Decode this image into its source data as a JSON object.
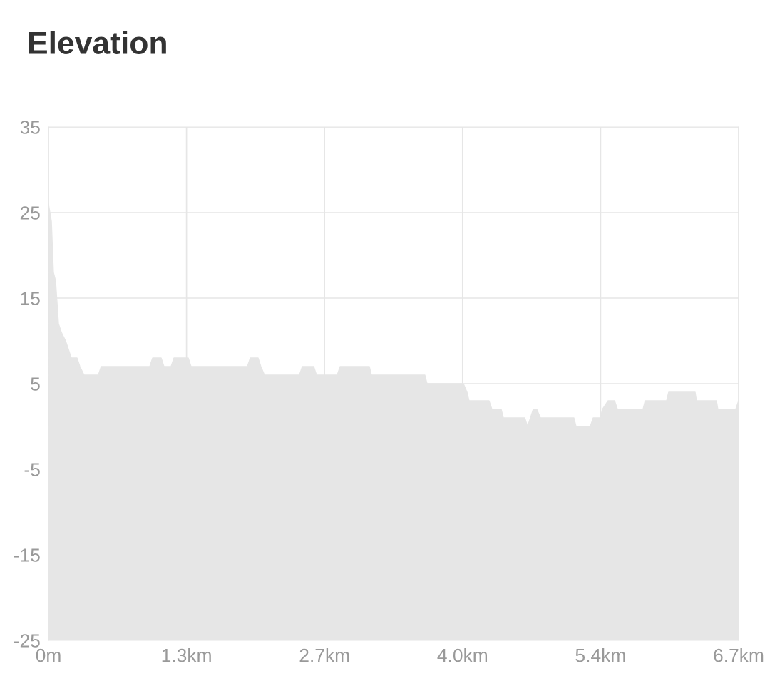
{
  "chart_data": {
    "type": "area",
    "title": "Elevation",
    "x": [
      0,
      0.028,
      0.048,
      0.069,
      0.097,
      0.125,
      0.166,
      0.194,
      0.221,
      0.277,
      0.305,
      0.346,
      0.484,
      0.512,
      0.983,
      1.011,
      1.094,
      1.121,
      1.19,
      1.218,
      1.357,
      1.384,
      1.931,
      1.959,
      2.035,
      2.062,
      2.097,
      2.436,
      2.464,
      2.575,
      2.602,
      2.803,
      2.831,
      3.115,
      3.135,
      3.654,
      3.675,
      4.028,
      4.063,
      4.083,
      4.277,
      4.305,
      4.395,
      4.416,
      4.624,
      4.651,
      4.679,
      4.706,
      4.741,
      4.776,
      5.101,
      5.122,
      5.26,
      5.288,
      5.357,
      5.378,
      5.433,
      5.496,
      5.524,
      5.772,
      5.793,
      6.001,
      6.021,
      6.278,
      6.291,
      6.485,
      6.499,
      6.672,
      6.7
    ],
    "series": [
      {
        "color": "#e6e6e6",
        "values": [
          26,
          24,
          18,
          17,
          12,
          11,
          10,
          9,
          8,
          8,
          7,
          6,
          6,
          7,
          7,
          8,
          8,
          7,
          7,
          8,
          8,
          7,
          7,
          8,
          8,
          7,
          6,
          6,
          7,
          7,
          6,
          6,
          7,
          7,
          6,
          6,
          5,
          5,
          4,
          3,
          3,
          2,
          2,
          1,
          1,
          0,
          1,
          2,
          2,
          1,
          1,
          0,
          0,
          1,
          1,
          2,
          3,
          3,
          2,
          2,
          3,
          3,
          4,
          4,
          3,
          3,
          2,
          2,
          3
        ]
      }
    ],
    "xlim": [
      0,
      6.7
    ],
    "xticks": [
      {
        "value": 0,
        "label": "0m"
      },
      {
        "value": 1.34,
        "label": "1.3km"
      },
      {
        "value": 2.68,
        "label": "2.7km"
      },
      {
        "value": 4.02,
        "label": "4.0km"
      },
      {
        "value": 5.36,
        "label": "5.4km"
      },
      {
        "value": 6.7,
        "label": "6.7km"
      }
    ],
    "ylim": [
      -25,
      35
    ],
    "yticks": [
      -25,
      -15,
      -5,
      5,
      15,
      25,
      35
    ],
    "bands": [
      {
        "axis": "y",
        "from": -25,
        "to": 0,
        "color": "#e6e6e6"
      }
    ],
    "grid": true,
    "legend": false
  }
}
